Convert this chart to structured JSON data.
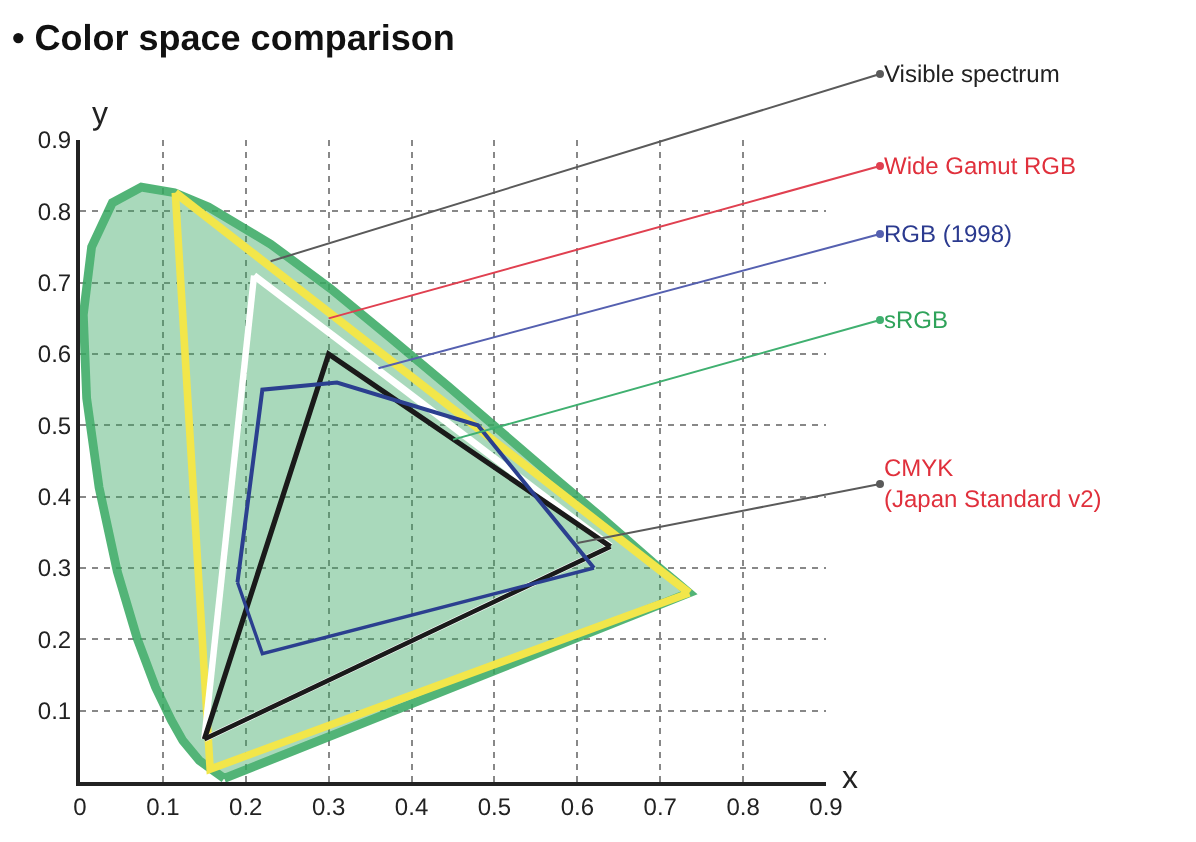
{
  "chart_data": {
    "type": "line",
    "title": "• Color space comparison",
    "xlabel": "x",
    "ylabel": "y",
    "xlim": [
      0,
      0.9
    ],
    "ylim": [
      0,
      0.9
    ],
    "xticks": [
      0,
      0.1,
      0.2,
      0.3,
      0.4,
      0.5,
      0.6,
      0.7,
      0.8,
      0.9
    ],
    "yticks": [
      0.1,
      0.2,
      0.3,
      0.4,
      0.5,
      0.6,
      0.7,
      0.8,
      0.9
    ],
    "grid": true,
    "marker": "none",
    "line_style": "solid",
    "series": [
      {
        "type": "area",
        "color": "#35a860",
        "x": [
          0.174,
          0.144,
          0.124,
          0.11,
          0.091,
          0.069,
          0.045,
          0.023,
          0.008,
          0.004,
          0.014,
          0.039,
          0.074,
          0.114,
          0.155,
          0.23,
          0.302,
          0.373,
          0.444,
          0.512,
          0.575,
          0.627,
          0.691,
          0.719,
          0.735,
          0.174
        ],
        "values": [
          0.005,
          0.03,
          0.058,
          0.087,
          0.133,
          0.201,
          0.295,
          0.413,
          0.538,
          0.655,
          0.75,
          0.812,
          0.834,
          0.826,
          0.806,
          0.754,
          0.692,
          0.624,
          0.555,
          0.487,
          0.424,
          0.373,
          0.308,
          0.281,
          0.265,
          0.005
        ]
      },
      {
        "color": "#f2e64a",
        "x": [
          0.115,
          0.735
        ],
        "values": [
          0.826,
          0.265
        ]
      },
      {
        "color": "#f2e64a",
        "x": [
          0.115,
          0.157,
          0.735
        ],
        "values": [
          0.826,
          0.018,
          0.265
        ]
      },
      {
        "color": "#ffffff",
        "x": [
          0.21,
          0.64
        ],
        "values": [
          0.71,
          0.33
        ]
      },
      {
        "color": "#ffffff",
        "x": [
          0.15,
          0.21
        ],
        "values": [
          0.06,
          0.71
        ]
      },
      {
        "color": "#ffffff",
        "x": [
          0.15,
          0.64
        ],
        "values": [
          0.06,
          0.33
        ]
      },
      {
        "color": "#1a1a1a",
        "x": [
          0.15,
          0.3,
          0.64
        ],
        "values": [
          0.06,
          0.6,
          0.33
        ]
      },
      {
        "color": "#1a1a1a",
        "x": [
          0.15,
          0.64
        ],
        "values": [
          0.06,
          0.33
        ]
      },
      {
        "color": "#2b3f8f",
        "x": [
          0.19,
          0.22,
          0.31,
          0.48,
          0.62
        ],
        "values": [
          0.28,
          0.55,
          0.56,
          0.5,
          0.3
        ]
      },
      {
        "color": "#2b3f8f",
        "x": [
          0.19,
          0.22,
          0.62
        ],
        "values": [
          0.28,
          0.18,
          0.3
        ]
      }
    ],
    "annotations": [
      {
        "text": "Visible spectrum",
        "x": 0.23,
        "y": 0.73
      },
      {
        "text": "Wide Gamut RGB",
        "x": 0.3,
        "y": 0.65
      },
      {
        "text": "RGB (1998)",
        "x": 0.36,
        "y": 0.58
      },
      {
        "text": "sRGB",
        "x": 0.45,
        "y": 0.48
      },
      {
        "text": "CMYK\n(Japan Standard v2)",
        "x": 0.6,
        "y": 0.335
      }
    ]
  }
}
